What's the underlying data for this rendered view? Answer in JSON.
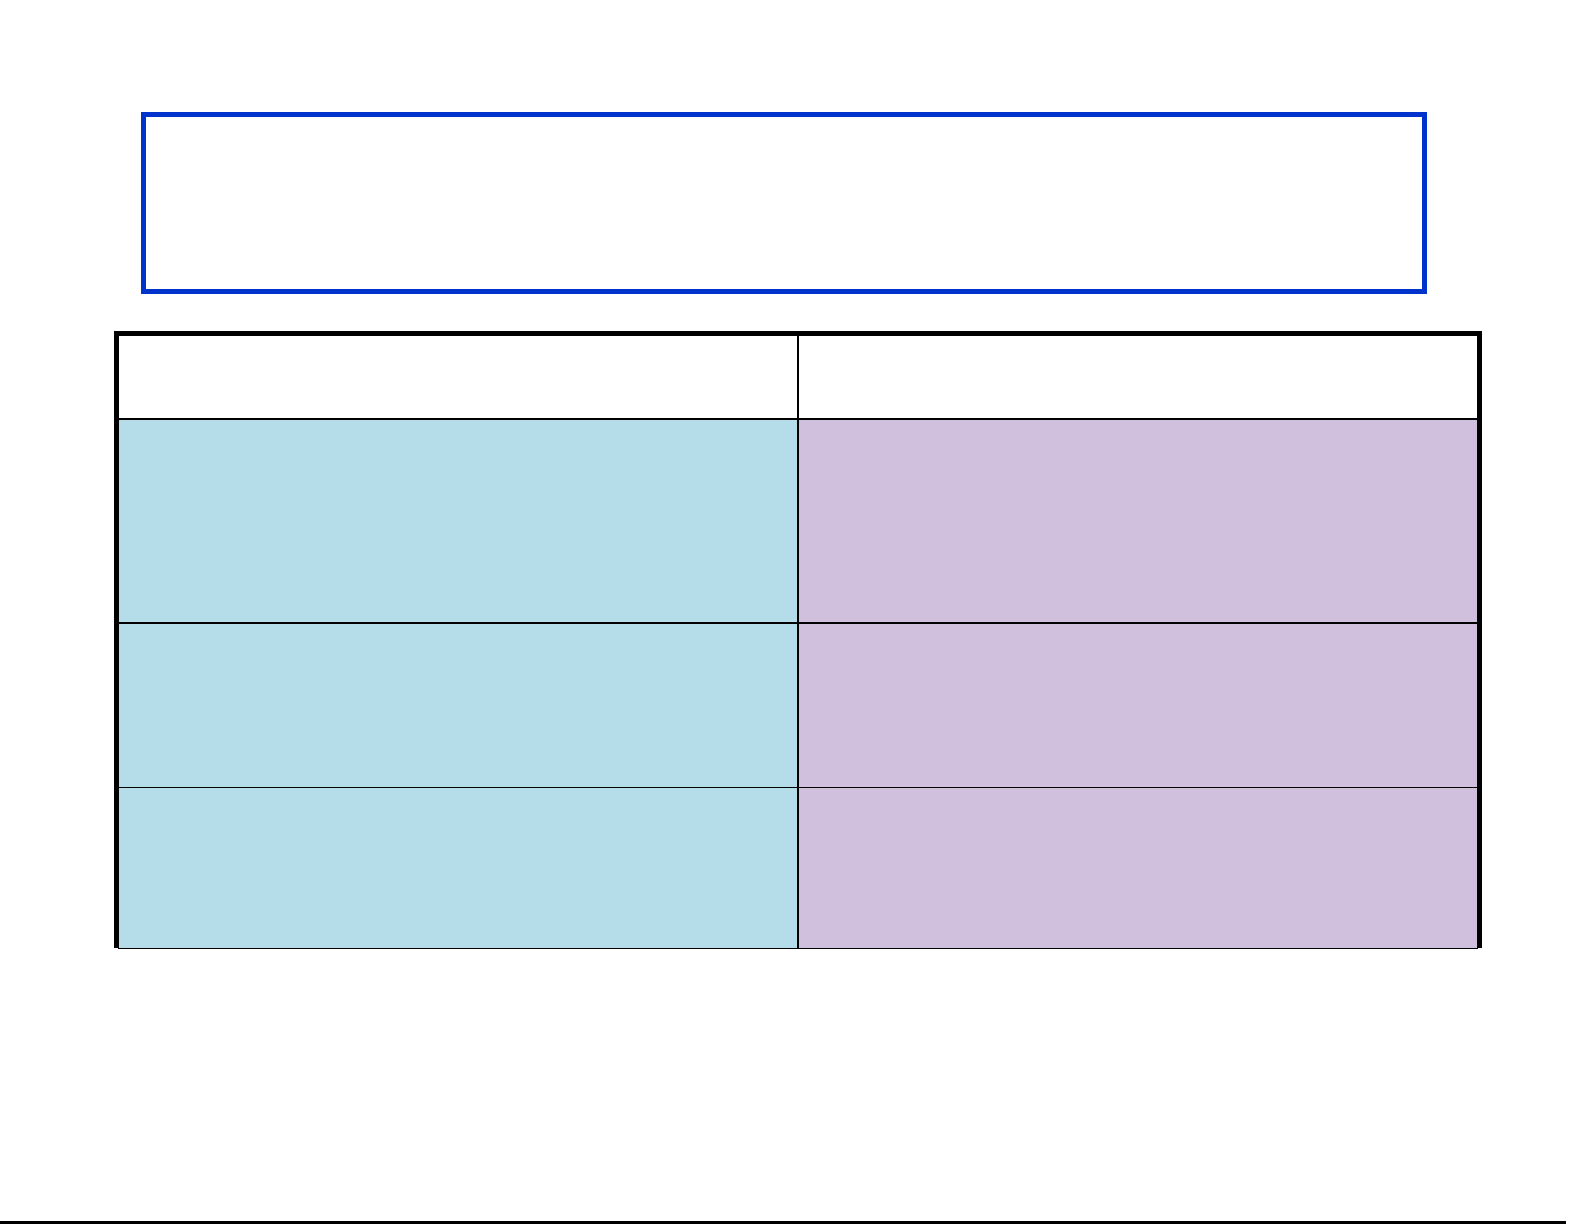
{
  "colors": {
    "title_box_border": "#0033cc",
    "table_border": "#000000",
    "left_column_fill": "#b4dde9",
    "right_column_fill": "#d0c0dd",
    "header_fill": "#ffffff"
  },
  "title_box": {
    "text": ""
  },
  "table": {
    "headers": [
      "",
      ""
    ],
    "rows": [
      [
        "",
        ""
      ],
      [
        "",
        ""
      ],
      [
        "",
        ""
      ]
    ]
  }
}
